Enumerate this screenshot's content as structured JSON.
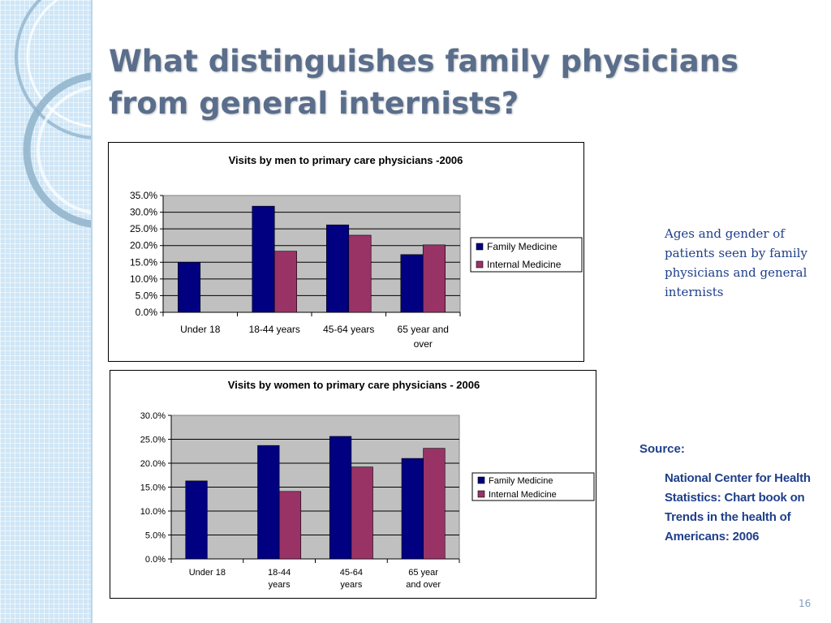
{
  "slide": {
    "title": "What distinguishes family physicians from general internists?",
    "side_note": "Ages and gender of patients seen by family physicians and general internists",
    "source_label": "Source:",
    "source_text": "National Center for Health Statistics: Chart book on Trends in the health of Americans: 2006",
    "page_number": "16"
  },
  "colors": {
    "family_medicine": "#000080",
    "internal_medicine": "#993366",
    "plot_background": "#c0c0c0",
    "band": "#cfe6f6"
  },
  "chart_data": [
    {
      "type": "bar",
      "title": "Visits by men to primary care physicians -2006",
      "xlabel": "",
      "ylabel": "",
      "categories": [
        "Under 18",
        "18-44 years",
        "45-64 years",
        "65 year and over"
      ],
      "series": [
        {
          "name": "Family Medicine",
          "values": [
            15.0,
            31.8,
            26.2,
            17.3
          ]
        },
        {
          "name": "Internal Medicine",
          "values": [
            0.0,
            18.3,
            23.1,
            20.2
          ]
        }
      ],
      "ylim": [
        0,
        35
      ],
      "yticks": [
        0,
        5,
        10,
        15,
        20,
        25,
        30,
        35
      ],
      "ytick_labels": [
        "0.0%",
        "5.0%",
        "10.0%",
        "15.0%",
        "20.0%",
        "25.0%",
        "30.0%",
        "35.0%"
      ],
      "grid": true,
      "legend": "right"
    },
    {
      "type": "bar",
      "title": "Visits by women to primary care physicians - 2006",
      "xlabel": "",
      "ylabel": "",
      "categories": [
        "Under 18",
        "18-44 years",
        "45-64 years",
        "65 year and over"
      ],
      "series": [
        {
          "name": "Family Medicine",
          "values": [
            16.3,
            23.7,
            25.6,
            21.0
          ]
        },
        {
          "name": "Internal Medicine",
          "values": [
            0.0,
            14.1,
            19.2,
            23.1
          ]
        }
      ],
      "ylim": [
        0,
        30
      ],
      "yticks": [
        0,
        5,
        10,
        15,
        20,
        25,
        30
      ],
      "ytick_labels": [
        "0.0%",
        "5.0%",
        "10.0%",
        "15.0%",
        "20.0%",
        "25.0%",
        "30.0%"
      ],
      "grid": true,
      "legend": "right"
    }
  ]
}
